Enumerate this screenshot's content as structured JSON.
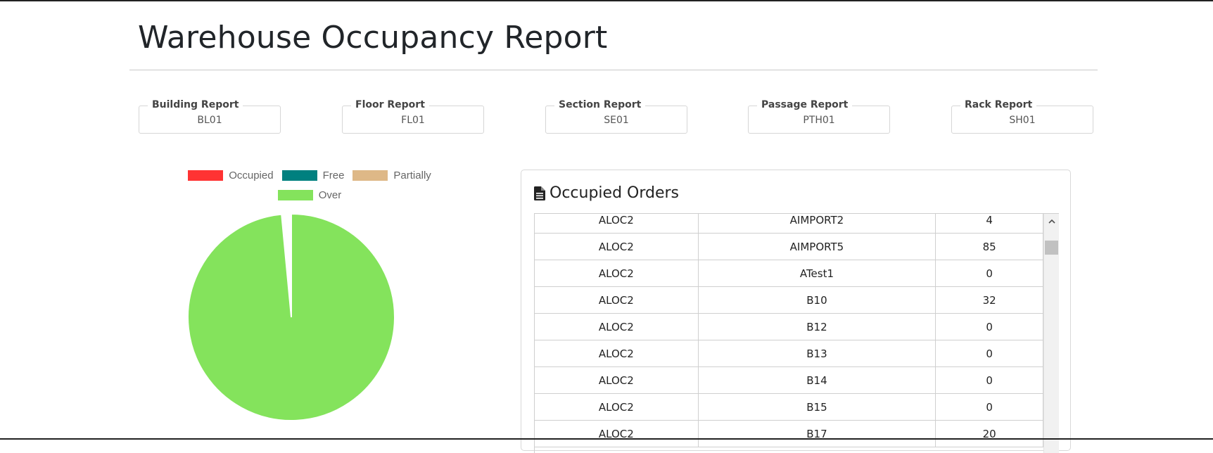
{
  "page": {
    "title": "Warehouse Occupancy Report"
  },
  "filters": [
    {
      "label": "Building Report",
      "value": "BL01"
    },
    {
      "label": "Floor Report",
      "value": "FL01"
    },
    {
      "label": "Section Report",
      "value": "SE01"
    },
    {
      "label": "Passage Report",
      "value": "PTH01"
    },
    {
      "label": "Rack Report",
      "value": "SH01"
    }
  ],
  "chart_data": {
    "type": "pie",
    "legend": [
      {
        "label": "Occupied",
        "color": "#ff3333"
      },
      {
        "label": "Free",
        "color": "#00807f"
      },
      {
        "label": "Partially",
        "color": "#deb887"
      },
      {
        "label": "Over",
        "color": "#84e35c"
      }
    ],
    "slices": [
      {
        "label": "Occupied",
        "value": 0
      },
      {
        "label": "Free",
        "value": 0
      },
      {
        "label": "Partially",
        "value": 0
      },
      {
        "label": "Over",
        "value": 0.985
      }
    ],
    "legend_position": "top"
  },
  "orders": {
    "title": "Occupied Orders",
    "icon": "file-text-icon",
    "rows": [
      [
        "ALOC2",
        "AIMPORT2",
        "4"
      ],
      [
        "ALOC2",
        "AIMPORT5",
        "85"
      ],
      [
        "ALOC2",
        "ATest1",
        "0"
      ],
      [
        "ALOC2",
        "B10",
        "32"
      ],
      [
        "ALOC2",
        "B12",
        "0"
      ],
      [
        "ALOC2",
        "B13",
        "0"
      ],
      [
        "ALOC2",
        "B14",
        "0"
      ],
      [
        "ALOC2",
        "B15",
        "0"
      ],
      [
        "ALOC2",
        "B17",
        "20"
      ]
    ]
  }
}
